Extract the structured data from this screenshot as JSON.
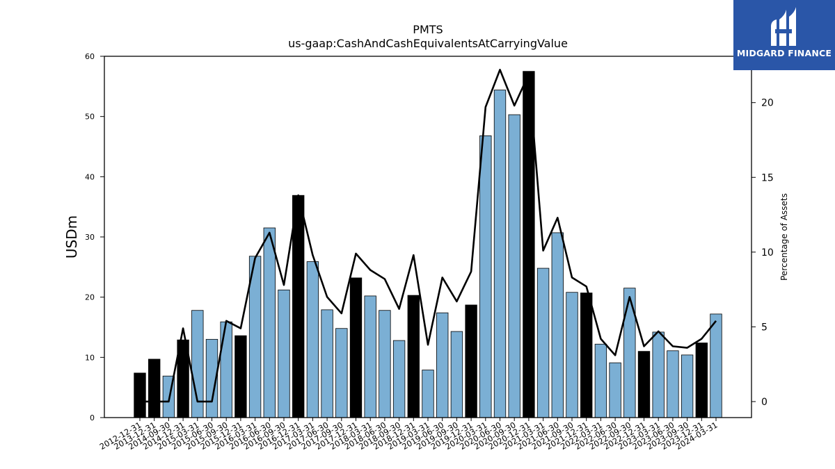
{
  "chart_data": {
    "type": "bar",
    "title": "PMTS",
    "subtitle": "us-gaap:CashAndCashEquivalentsAtCarryingValue",
    "ylabel": "USDm",
    "y2label": "Percentage of Assets",
    "ylim": [
      0,
      60
    ],
    "y2lim": [
      -1.07,
      23.1
    ],
    "yticks": [
      0,
      10,
      20,
      30,
      40,
      50,
      60
    ],
    "y2ticks": [
      0,
      5,
      10,
      15,
      20
    ],
    "grid": false,
    "bar_colors": {
      "annual": "#000000",
      "quarterly": "#7bafd4"
    },
    "line_color": "#000000",
    "categories": [
      "2012-12-31",
      "2013-12-31",
      "2014-09-30",
      "2014-12-31",
      "2015-03-31",
      "2015-06-30",
      "2015-09-30",
      "2015-12-31",
      "2016-03-31",
      "2016-06-30",
      "2016-09-30",
      "2016-12-31",
      "2017-03-31",
      "2017-06-30",
      "2017-09-30",
      "2017-12-31",
      "2018-03-31",
      "2018-06-30",
      "2018-09-30",
      "2018-12-31",
      "2019-03-31",
      "2019-06-30",
      "2019-09-30",
      "2019-12-31",
      "2020-03-31",
      "2020-06-30",
      "2020-09-30",
      "2020-12-31",
      "2021-03-31",
      "2021-06-30",
      "2021-09-30",
      "2021-12-31",
      "2022-03-31",
      "2022-06-30",
      "2022-09-30",
      "2022-12-31",
      "2023-03-31",
      "2023-06-30",
      "2023-09-30",
      "2023-12-31",
      "2024-03-31"
    ],
    "series": [
      {
        "kind": "bar",
        "axis": "left",
        "values": [
          7.4,
          9.7,
          6.9,
          12.9,
          17.8,
          13.0,
          15.9,
          13.6,
          26.8,
          31.5,
          21.2,
          36.9,
          25.9,
          17.9,
          14.8,
          23.2,
          20.2,
          17.8,
          12.8,
          20.3,
          7.9,
          17.4,
          14.3,
          18.7,
          46.8,
          54.4,
          50.3,
          57.5,
          24.8,
          30.7,
          20.8,
          20.7,
          12.2,
          9.1,
          21.5,
          11.0,
          14.2,
          11.1,
          10.4,
          12.4,
          17.2
        ],
        "annual": [
          true,
          true,
          false,
          true,
          false,
          false,
          false,
          true,
          false,
          false,
          false,
          true,
          false,
          false,
          false,
          true,
          false,
          false,
          false,
          true,
          false,
          false,
          false,
          true,
          false,
          false,
          false,
          true,
          false,
          false,
          false,
          true,
          false,
          false,
          false,
          true,
          false,
          false,
          false,
          true,
          false
        ]
      },
      {
        "kind": "line",
        "axis": "right",
        "values": [
          0.0,
          0.0,
          0.0,
          4.9,
          0.0,
          0.0,
          5.4,
          4.9,
          9.6,
          11.3,
          7.8,
          13.8,
          9.8,
          7.0,
          5.9,
          9.9,
          8.8,
          8.2,
          6.2,
          9.8,
          3.8,
          8.3,
          6.7,
          8.7,
          19.7,
          22.2,
          19.8,
          21.9,
          10.1,
          12.3,
          8.3,
          7.7,
          4.2,
          3.1,
          7.0,
          3.7,
          4.7,
          3.7,
          3.6,
          4.2,
          5.4
        ]
      }
    ]
  },
  "logo": {
    "text": "MIDGARD FINANCE",
    "bg": "#2a56a8"
  }
}
